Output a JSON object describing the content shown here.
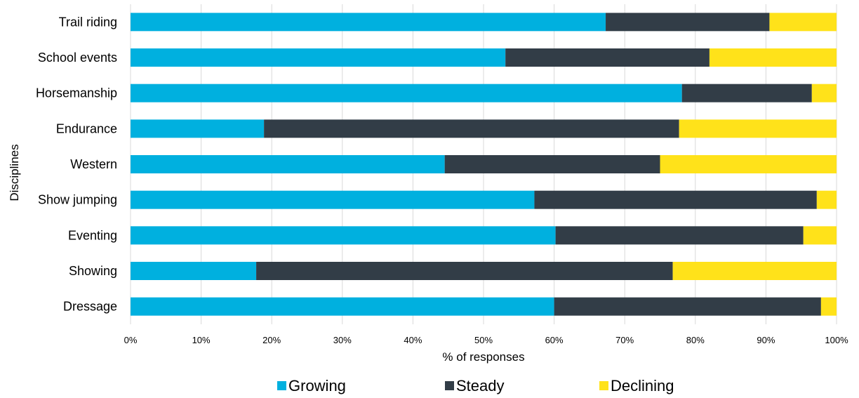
{
  "chart_data": {
    "type": "bar",
    "orientation": "horizontal",
    "stacked": true,
    "categories": [
      "Trail riding",
      "School events",
      "Horsemanship",
      "Endurance",
      "Western",
      "Show jumping",
      "Eventing",
      "Showing",
      "Dressage"
    ],
    "series": [
      {
        "name": "Growing",
        "color": "#00b0df",
        "values": [
          67.3,
          53.1,
          78.1,
          18.9,
          44.5,
          57.2,
          60.2,
          17.8,
          60.0
        ]
      },
      {
        "name": "Steady",
        "color": "#323d47",
        "values": [
          23.2,
          28.9,
          18.4,
          58.8,
          30.5,
          40.0,
          35.1,
          59.0,
          37.8
        ]
      },
      {
        "name": "Declining",
        "color": "#ffe21a",
        "values": [
          9.5,
          18.0,
          3.5,
          22.3,
          25.0,
          2.8,
          4.7,
          23.2,
          2.2
        ]
      }
    ],
    "xlabel": "% of responses",
    "ylabel": "Disciplines",
    "xlim": [
      0,
      100
    ],
    "xticks": [
      "0%",
      "10%",
      "20%",
      "30%",
      "40%",
      "50%",
      "60%",
      "70%",
      "80%",
      "90%",
      "100%"
    ],
    "grid": "vertical",
    "legend": "bottom"
  }
}
